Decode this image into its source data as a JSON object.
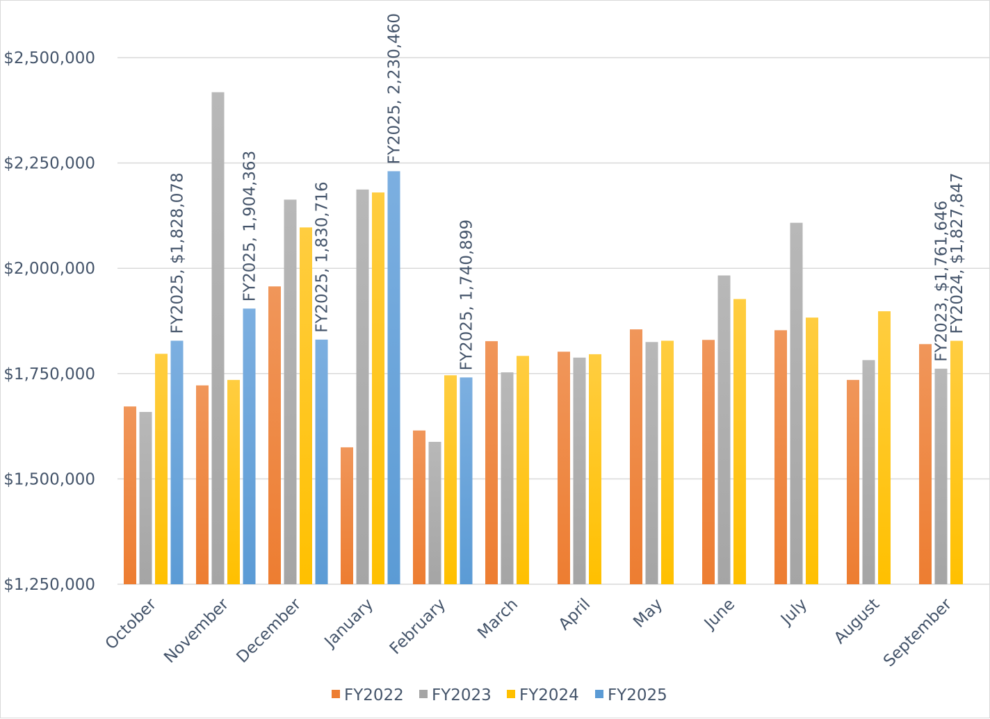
{
  "chart_data": {
    "type": "bar",
    "title": "",
    "xlabel": "",
    "ylabel": "",
    "ylim": [
      1250000,
      2500000
    ],
    "yticks": [
      1250000,
      1500000,
      1750000,
      2000000,
      2250000,
      2500000
    ],
    "ytick_labels": [
      "$1,250,000",
      "$1,500,000",
      "$1,750,000",
      "$2,000,000",
      "$2,250,000",
      "$2,500,000"
    ],
    "grid": true,
    "legend_position": "bottom",
    "categories": [
      "October",
      "November",
      "December",
      "January",
      "February",
      "March",
      "April",
      "May",
      "June",
      "July",
      "August",
      "September"
    ],
    "series": [
      {
        "name": "FY2022",
        "color": "#ed7d31",
        "color_top": "#f0965a",
        "values": [
          1672000,
          1722000,
          1957000,
          1575000,
          1615000,
          1827000,
          1802000,
          1855000,
          1830000,
          1853000,
          1735000,
          1820000
        ]
      },
      {
        "name": "FY2023",
        "color": "#a5a5a5",
        "color_top": "#b8b8b8",
        "values": [
          1659000,
          2418000,
          2163000,
          2187000,
          1588000,
          1753000,
          1788000,
          1825000,
          1983000,
          2108000,
          1782000,
          1761646
        ]
      },
      {
        "name": "FY2024",
        "color": "#ffc000",
        "color_top": "#ffcd40",
        "values": [
          1797000,
          1735000,
          2097000,
          2180000,
          1746000,
          1792000,
          1796000,
          1828000,
          1927000,
          1883000,
          1898000,
          1827847
        ]
      },
      {
        "name": "FY2025",
        "color": "#5b9bd5",
        "color_top": "#7cafe0",
        "values": [
          1828078,
          1904363,
          1830716,
          2230460,
          1740899,
          null,
          null,
          null,
          null,
          null,
          null,
          null
        ]
      }
    ],
    "data_labels": [
      {
        "series": 3,
        "category": 0,
        "text": "FY2025,  $1,828,078"
      },
      {
        "series": 3,
        "category": 1,
        "text": "FY2025,  1,904,363"
      },
      {
        "series": 3,
        "category": 2,
        "text": "FY2025,  1,830,716"
      },
      {
        "series": 3,
        "category": 3,
        "text": "FY2025,  2,230,460"
      },
      {
        "series": 3,
        "category": 4,
        "text": "FY2025,  1,740,899"
      },
      {
        "series": 1,
        "category": 11,
        "text": "FY2023, $1,761,646"
      },
      {
        "series": 2,
        "category": 11,
        "text": "FY2024, $1,827,847"
      }
    ]
  }
}
